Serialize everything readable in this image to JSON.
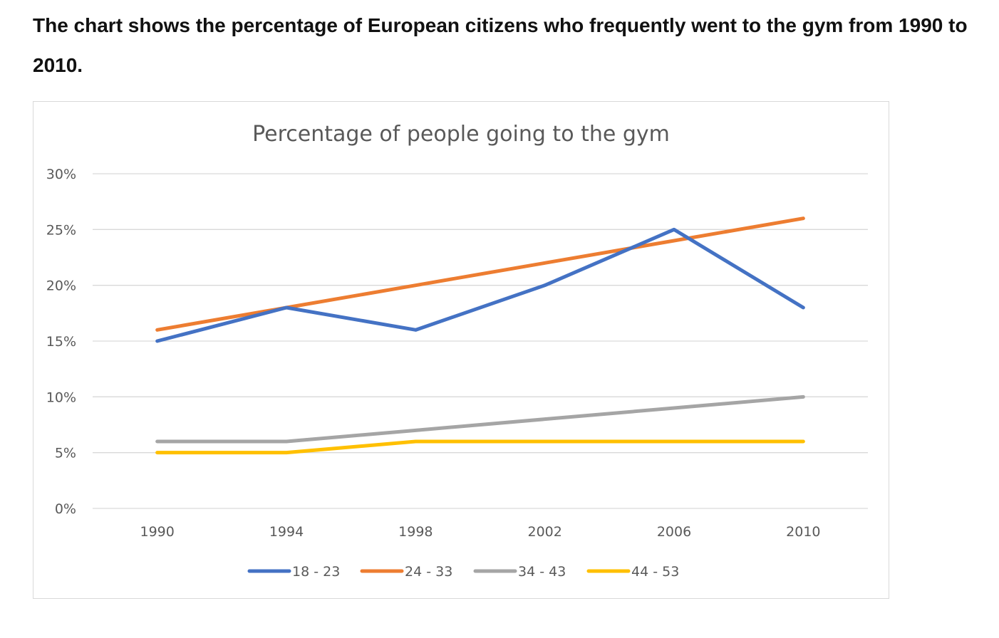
{
  "page": {
    "heading": "The chart shows the percentage of European citizens who frequently went to the gym from 1990 to 2010."
  },
  "chart_data": {
    "type": "line",
    "title": "Percentage of people going to the gym",
    "xlabel": "",
    "ylabel": "",
    "x": [
      "1990",
      "1994",
      "1998",
      "2002",
      "2006",
      "2010"
    ],
    "ylim": [
      0,
      30
    ],
    "yticks": [
      0,
      5,
      10,
      15,
      20,
      25,
      30
    ],
    "ytick_labels": [
      "0%",
      "5%",
      "10%",
      "15%",
      "20%",
      "25%",
      "30%"
    ],
    "grid": true,
    "legend_position": "bottom",
    "series": [
      {
        "name": "18 - 23",
        "color": "#4472C4",
        "values": [
          15,
          18,
          16,
          20,
          25,
          18
        ]
      },
      {
        "name": "24 - 33",
        "color": "#ED7D31",
        "values": [
          16,
          18,
          20,
          22,
          24,
          26
        ]
      },
      {
        "name": "34 - 43",
        "color": "#A5A5A5",
        "values": [
          6,
          6,
          7,
          8,
          9,
          10
        ]
      },
      {
        "name": "44 - 53",
        "color": "#FFC000",
        "values": [
          5,
          5,
          6,
          6,
          6,
          6
        ]
      }
    ]
  }
}
